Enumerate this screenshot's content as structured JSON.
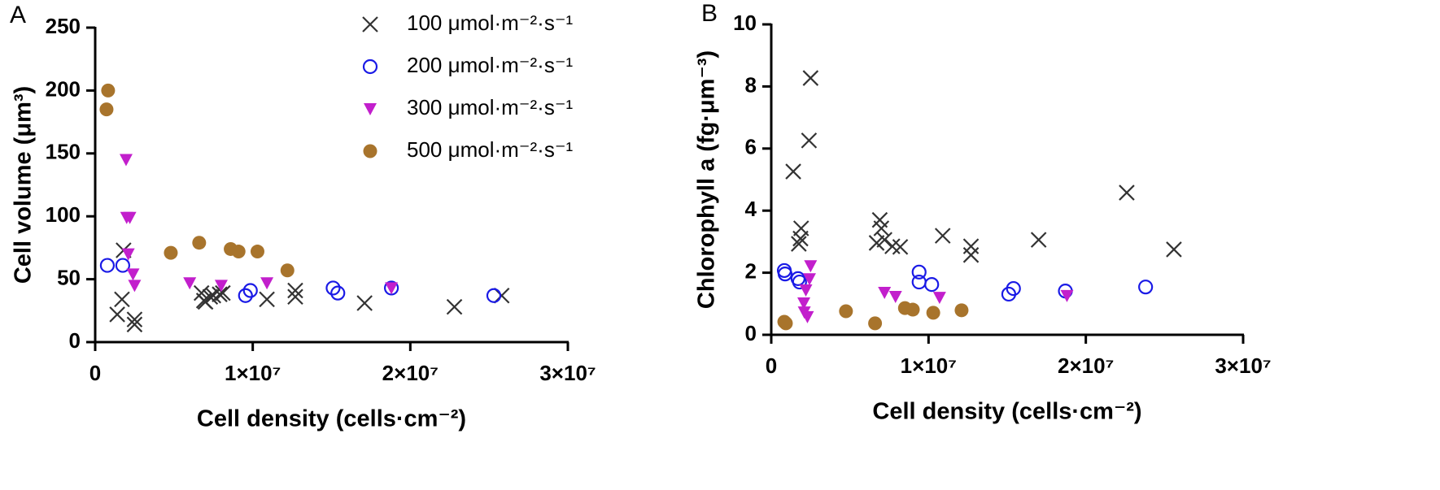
{
  "chart_data": [
    {
      "type": "scatter",
      "panel_label": "A",
      "xlabel": "Cell density (cells·cm⁻²)",
      "ylabel": "Cell volume (μm³)",
      "xlim": [
        0,
        30000000
      ],
      "ylim": [
        0,
        250
      ],
      "xticks": [
        0,
        {
          "value": 10000000,
          "label": "1×10⁷"
        },
        {
          "value": 20000000,
          "label": "2×10⁷"
        },
        {
          "value": 30000000,
          "label": "3×10⁷"
        }
      ],
      "yticks": [
        0,
        50,
        100,
        150,
        200,
        250
      ],
      "legend": "upper right",
      "series": [
        {
          "name": "100 μmol·m⁻²·s⁻¹",
          "color": "#333333",
          "marker": "x",
          "x": [
            1400000,
            1700000,
            1800000,
            2500000,
            2500000,
            6750000,
            6900000,
            7000000,
            7300000,
            7500000,
            7900000,
            8100000,
            10900000,
            12700000,
            12700000,
            17100000,
            22800000,
            25800000
          ],
          "values": [
            22,
            34,
            73,
            18,
            14,
            39,
            33,
            32,
            36,
            37,
            38,
            39,
            34,
            41,
            36,
            31,
            28,
            37
          ]
        },
        {
          "name": "200 μmol·m⁻²·s⁻¹",
          "color": "#1a1ae6",
          "marker": "circle-open",
          "x": [
            770000,
            1750000,
            9540000,
            9850000,
            15100000,
            15400000,
            18800000,
            25300000
          ],
          "values": [
            61,
            61,
            37,
            41,
            43,
            39,
            43,
            37
          ]
        },
        {
          "name": "300 μmol·m⁻²·s⁻¹",
          "color": "#c21fcc",
          "marker": "triangle-down",
          "x": [
            1960000,
            2000000,
            2200000,
            2100000,
            2400000,
            2500000,
            6000000,
            8000000,
            10900000,
            18800000
          ],
          "values": [
            145,
            99,
            99,
            70,
            54,
            45,
            47,
            45,
            47,
            43
          ]
        },
        {
          "name": "500 μmol·m⁻²·s⁻¹",
          "color": "#a8742c",
          "marker": "circle",
          "x": [
            820000,
            720000,
            4800000,
            6600000,
            8600000,
            9100000,
            10300000,
            12200000
          ],
          "values": [
            200,
            185,
            71,
            79,
            74,
            72,
            72,
            57
          ]
        }
      ]
    },
    {
      "type": "scatter",
      "panel_label": "B",
      "xlabel": "Cell density (cells·cm⁻²)",
      "ylabel": "Chlorophyll a (fg·μm⁻³)",
      "xlim": [
        0,
        30000000
      ],
      "ylim": [
        0,
        10
      ],
      "xticks": [
        0,
        {
          "value": 10000000,
          "label": "1×10⁷"
        },
        {
          "value": 20000000,
          "label": "2×10⁷"
        },
        {
          "value": 30000000,
          "label": "3×10⁷"
        }
      ],
      "yticks": [
        0,
        2,
        4,
        6,
        8,
        10
      ],
      "series": [
        {
          "color": "#333333",
          "marker": "x",
          "x": [
            1400000,
            1750000,
            1860000,
            1900000,
            2400000,
            2500000,
            6900000,
            7000000,
            6700000,
            7200000,
            7700000,
            8200000,
            10900000,
            12700000,
            12700000,
            17000000,
            22600000,
            25600000
          ],
          "values": [
            5.26,
            2.93,
            3.1,
            3.43,
            6.26,
            8.27,
            3.7,
            3.43,
            2.96,
            3.06,
            2.85,
            2.83,
            3.19,
            2.85,
            2.57,
            3.06,
            4.58,
            2.75
          ]
        },
        {
          "color": "#1a1ae6",
          "marker": "circle-open",
          "x": [
            830000,
            880000,
            1700000,
            1800000,
            9400000,
            9400000,
            10200000,
            15100000,
            15400000,
            18700000,
            23800000
          ],
          "values": [
            2.07,
            1.96,
            1.81,
            1.7,
            2.02,
            1.7,
            1.62,
            1.31,
            1.49,
            1.41,
            1.54
          ]
        },
        {
          "color": "#c21fcc",
          "marker": "triangle-down",
          "x": [
            2070000,
            2100000,
            2200000,
            2430000,
            2500000,
            2300000,
            7200000,
            7900000,
            10700000,
            18800000
          ],
          "values": [
            1.02,
            0.73,
            1.44,
            1.8,
            2.22,
            0.58,
            1.36,
            1.23,
            1.2,
            1.26
          ]
        },
        {
          "color": "#a8742c",
          "marker": "circle",
          "x": [
            830000,
            930000,
            4750000,
            6600000,
            8500000,
            9000000,
            10300000,
            12100000
          ],
          "values": [
            0.42,
            0.37,
            0.76,
            0.37,
            0.86,
            0.81,
            0.71,
            0.79
          ]
        }
      ]
    }
  ]
}
